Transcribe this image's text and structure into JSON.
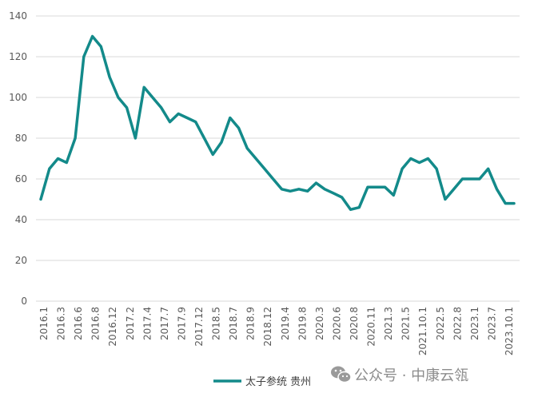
{
  "chart_data": {
    "type": "line",
    "title": "",
    "xlabel": "",
    "ylabel": "",
    "ylim": [
      0,
      140
    ],
    "yticks": [
      0,
      20,
      40,
      60,
      80,
      100,
      120,
      140
    ],
    "grid": true,
    "legend_position": "bottom",
    "x_tick_labels": [
      "2016.1",
      "2016.3",
      "2016.6",
      "2016.8",
      "2016.12",
      "2017.2",
      "2017.4",
      "2017.7",
      "2017.9",
      "2017.12",
      "2018.5",
      "2018.7",
      "2018.9",
      "2018.12",
      "2019.4",
      "2019.8",
      "2020.3",
      "2020.6",
      "2020.8",
      "2020.11",
      "2021.3",
      "2021.5",
      "2021.10.1",
      "2022.5",
      "2022.8",
      "2023.1",
      "2023.7",
      "2023.10.1"
    ],
    "series": [
      {
        "name": "太子参统 贵州",
        "color": "#138a8a",
        "values": [
          50,
          65,
          70,
          68,
          80,
          120,
          130,
          125,
          110,
          100,
          95,
          80,
          105,
          100,
          95,
          88,
          92,
          90,
          88,
          80,
          72,
          78,
          90,
          85,
          75,
          70,
          65,
          60,
          55,
          54,
          55,
          54,
          58,
          55,
          53,
          51,
          45,
          46,
          56,
          56,
          56,
          52,
          65,
          70,
          68,
          70,
          65,
          50,
          55,
          60,
          60,
          60,
          65,
          55,
          48,
          48
        ]
      }
    ]
  },
  "watermark": {
    "text": "公众号 · 中康云瓴",
    "icon": "wechat-icon"
  }
}
